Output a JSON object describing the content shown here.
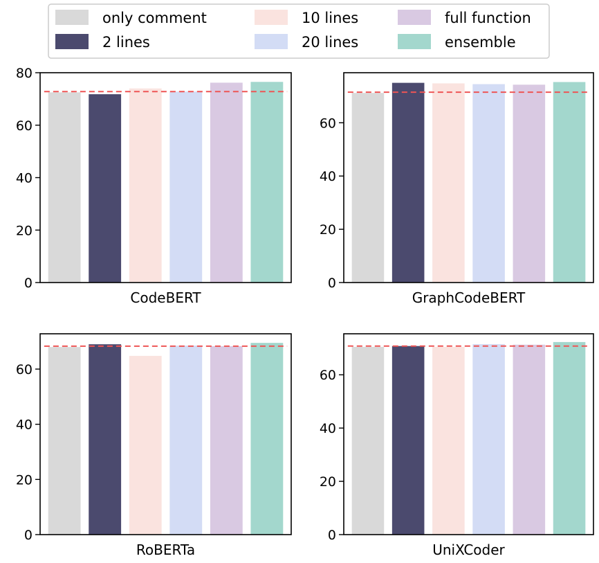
{
  "chart_data": [
    {
      "type": "bar",
      "xlabel": "CodeBERT",
      "categories": [
        "only comment",
        "2 lines",
        "10 lines",
        "20 lines",
        "full function",
        "ensemble"
      ],
      "values": [
        72.5,
        71.8,
        74.0,
        72.8,
        76.2,
        76.5
      ],
      "baseline": 72.8,
      "ylim": [
        0,
        80
      ],
      "yticks": [
        0,
        20,
        40,
        60,
        80
      ]
    },
    {
      "type": "bar",
      "xlabel": "GraphCodeBERT",
      "categories": [
        "only comment",
        "2 lines",
        "10 lines",
        "20 lines",
        "full function",
        "ensemble"
      ],
      "values": [
        71.2,
        75.0,
        74.8,
        74.5,
        74.3,
        75.3
      ],
      "baseline": 71.5,
      "ylim": [
        0,
        78.8
      ],
      "yticks": [
        0,
        20,
        40,
        60
      ]
    },
    {
      "type": "bar",
      "xlabel": "RoBERTa",
      "categories": [
        "only comment",
        "2 lines",
        "10 lines",
        "20 lines",
        "full function",
        "ensemble"
      ],
      "values": [
        68.0,
        69.0,
        64.8,
        68.5,
        68.3,
        69.5
      ],
      "baseline": 68.3,
      "ylim": [
        0,
        72.8
      ],
      "yticks": [
        0,
        20,
        40,
        60
      ]
    },
    {
      "type": "bar",
      "xlabel": "UniXCoder",
      "categories": [
        "only comment",
        "2 lines",
        "10 lines",
        "20 lines",
        "full function",
        "ensemble"
      ],
      "values": [
        70.5,
        70.8,
        70.5,
        71.5,
        71.3,
        72.3
      ],
      "baseline": 70.8,
      "ylim": [
        0,
        75.4
      ],
      "yticks": [
        0,
        20,
        40,
        60
      ]
    }
  ],
  "legend": {
    "placement": "top-center",
    "entries": [
      {
        "label": "only comment",
        "color": "#d9d9d9"
      },
      {
        "label": "2 lines",
        "color": "#4b4a6e"
      },
      {
        "label": "10 lines",
        "color": "#fae3df"
      },
      {
        "label": "20 lines",
        "color": "#d3dcf5"
      },
      {
        "label": "full function",
        "color": "#d9c9e2"
      },
      {
        "label": "ensemble",
        "color": "#a3d7cd"
      }
    ]
  },
  "baseline_color": "#ee5555"
}
